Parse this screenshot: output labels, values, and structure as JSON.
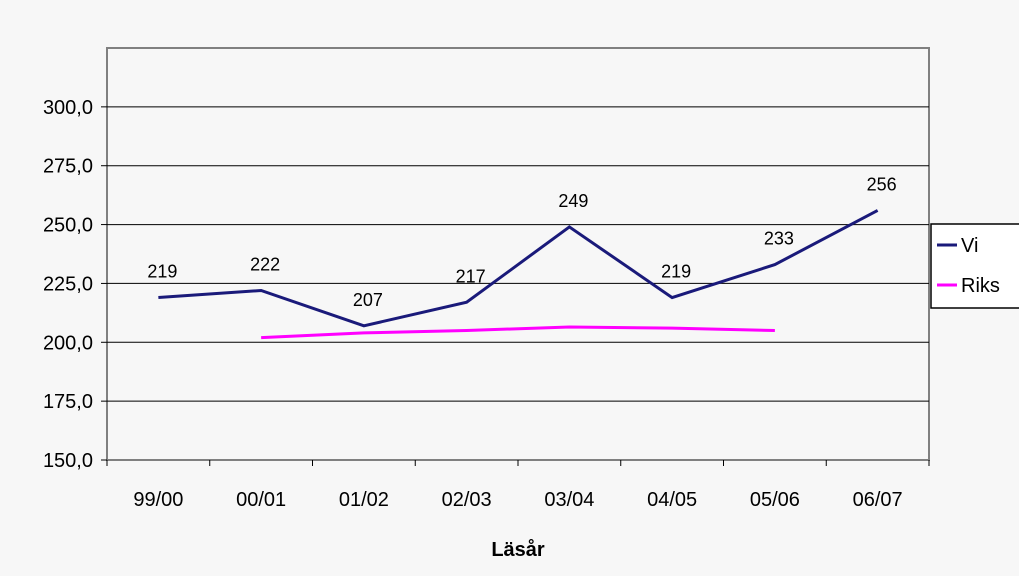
{
  "chart_data": {
    "type": "line",
    "title": "",
    "xlabel": "Läsår",
    "ylabel": "",
    "categories": [
      "99/00",
      "00/01",
      "01/02",
      "02/03",
      "03/04",
      "04/05",
      "05/06",
      "06/07"
    ],
    "ylim": [
      150,
      325
    ],
    "yticks": [
      150,
      175,
      200,
      225,
      250,
      275,
      300
    ],
    "ytick_labels": [
      "150,0",
      "175,0",
      "200,0",
      "225,0",
      "250,0",
      "275,0",
      "300,0"
    ],
    "grid": true,
    "legend_position": "right",
    "series": [
      {
        "name": "Vi",
        "color": "#1a1a7a",
        "values": [
          219,
          222,
          207,
          217,
          249,
          219,
          233,
          256
        ],
        "data_labels": [
          "219",
          "222",
          "207",
          "217",
          "249",
          "219",
          "233",
          "256"
        ]
      },
      {
        "name": "Riks",
        "color": "#ff00ff",
        "values": [
          null,
          202,
          204,
          205,
          206.5,
          206,
          205,
          null
        ],
        "data_labels": []
      }
    ]
  }
}
